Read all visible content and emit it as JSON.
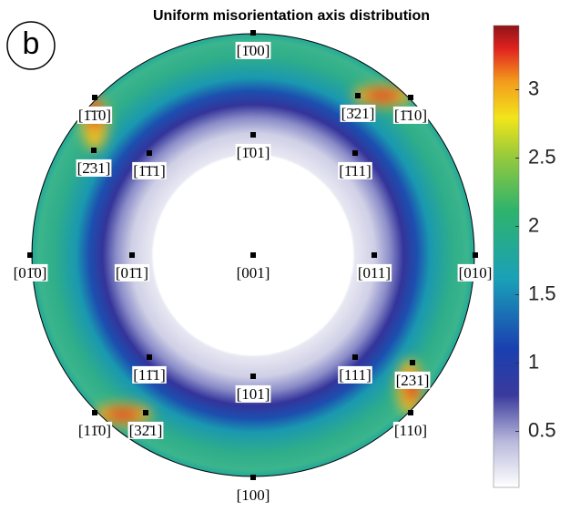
{
  "chart_data": {
    "type": "pole-figure",
    "title": "Uniform misorientation axis distribution",
    "panel_label": "b",
    "points": [
      "[1̄00]",
      "[1̄1̄0]",
      "[3̄21]",
      "[1̄10]",
      "[2̄31]",
      "[1̄1̄1]",
      "[1̄01]",
      "[1̄11]",
      "[01̄0]",
      "[01̄1]",
      "[001]",
      "[011]",
      "[010]",
      "[11̄1]",
      "[101]",
      "[111]",
      "[231]",
      "[11̄0]",
      "[32̄1]",
      "[110]",
      "[100]"
    ],
    "colorbar": {
      "ylim": [
        0.09,
        3.47
      ],
      "yticks": [
        0.5,
        1,
        1.5,
        2,
        2.5,
        3
      ]
    }
  }
}
